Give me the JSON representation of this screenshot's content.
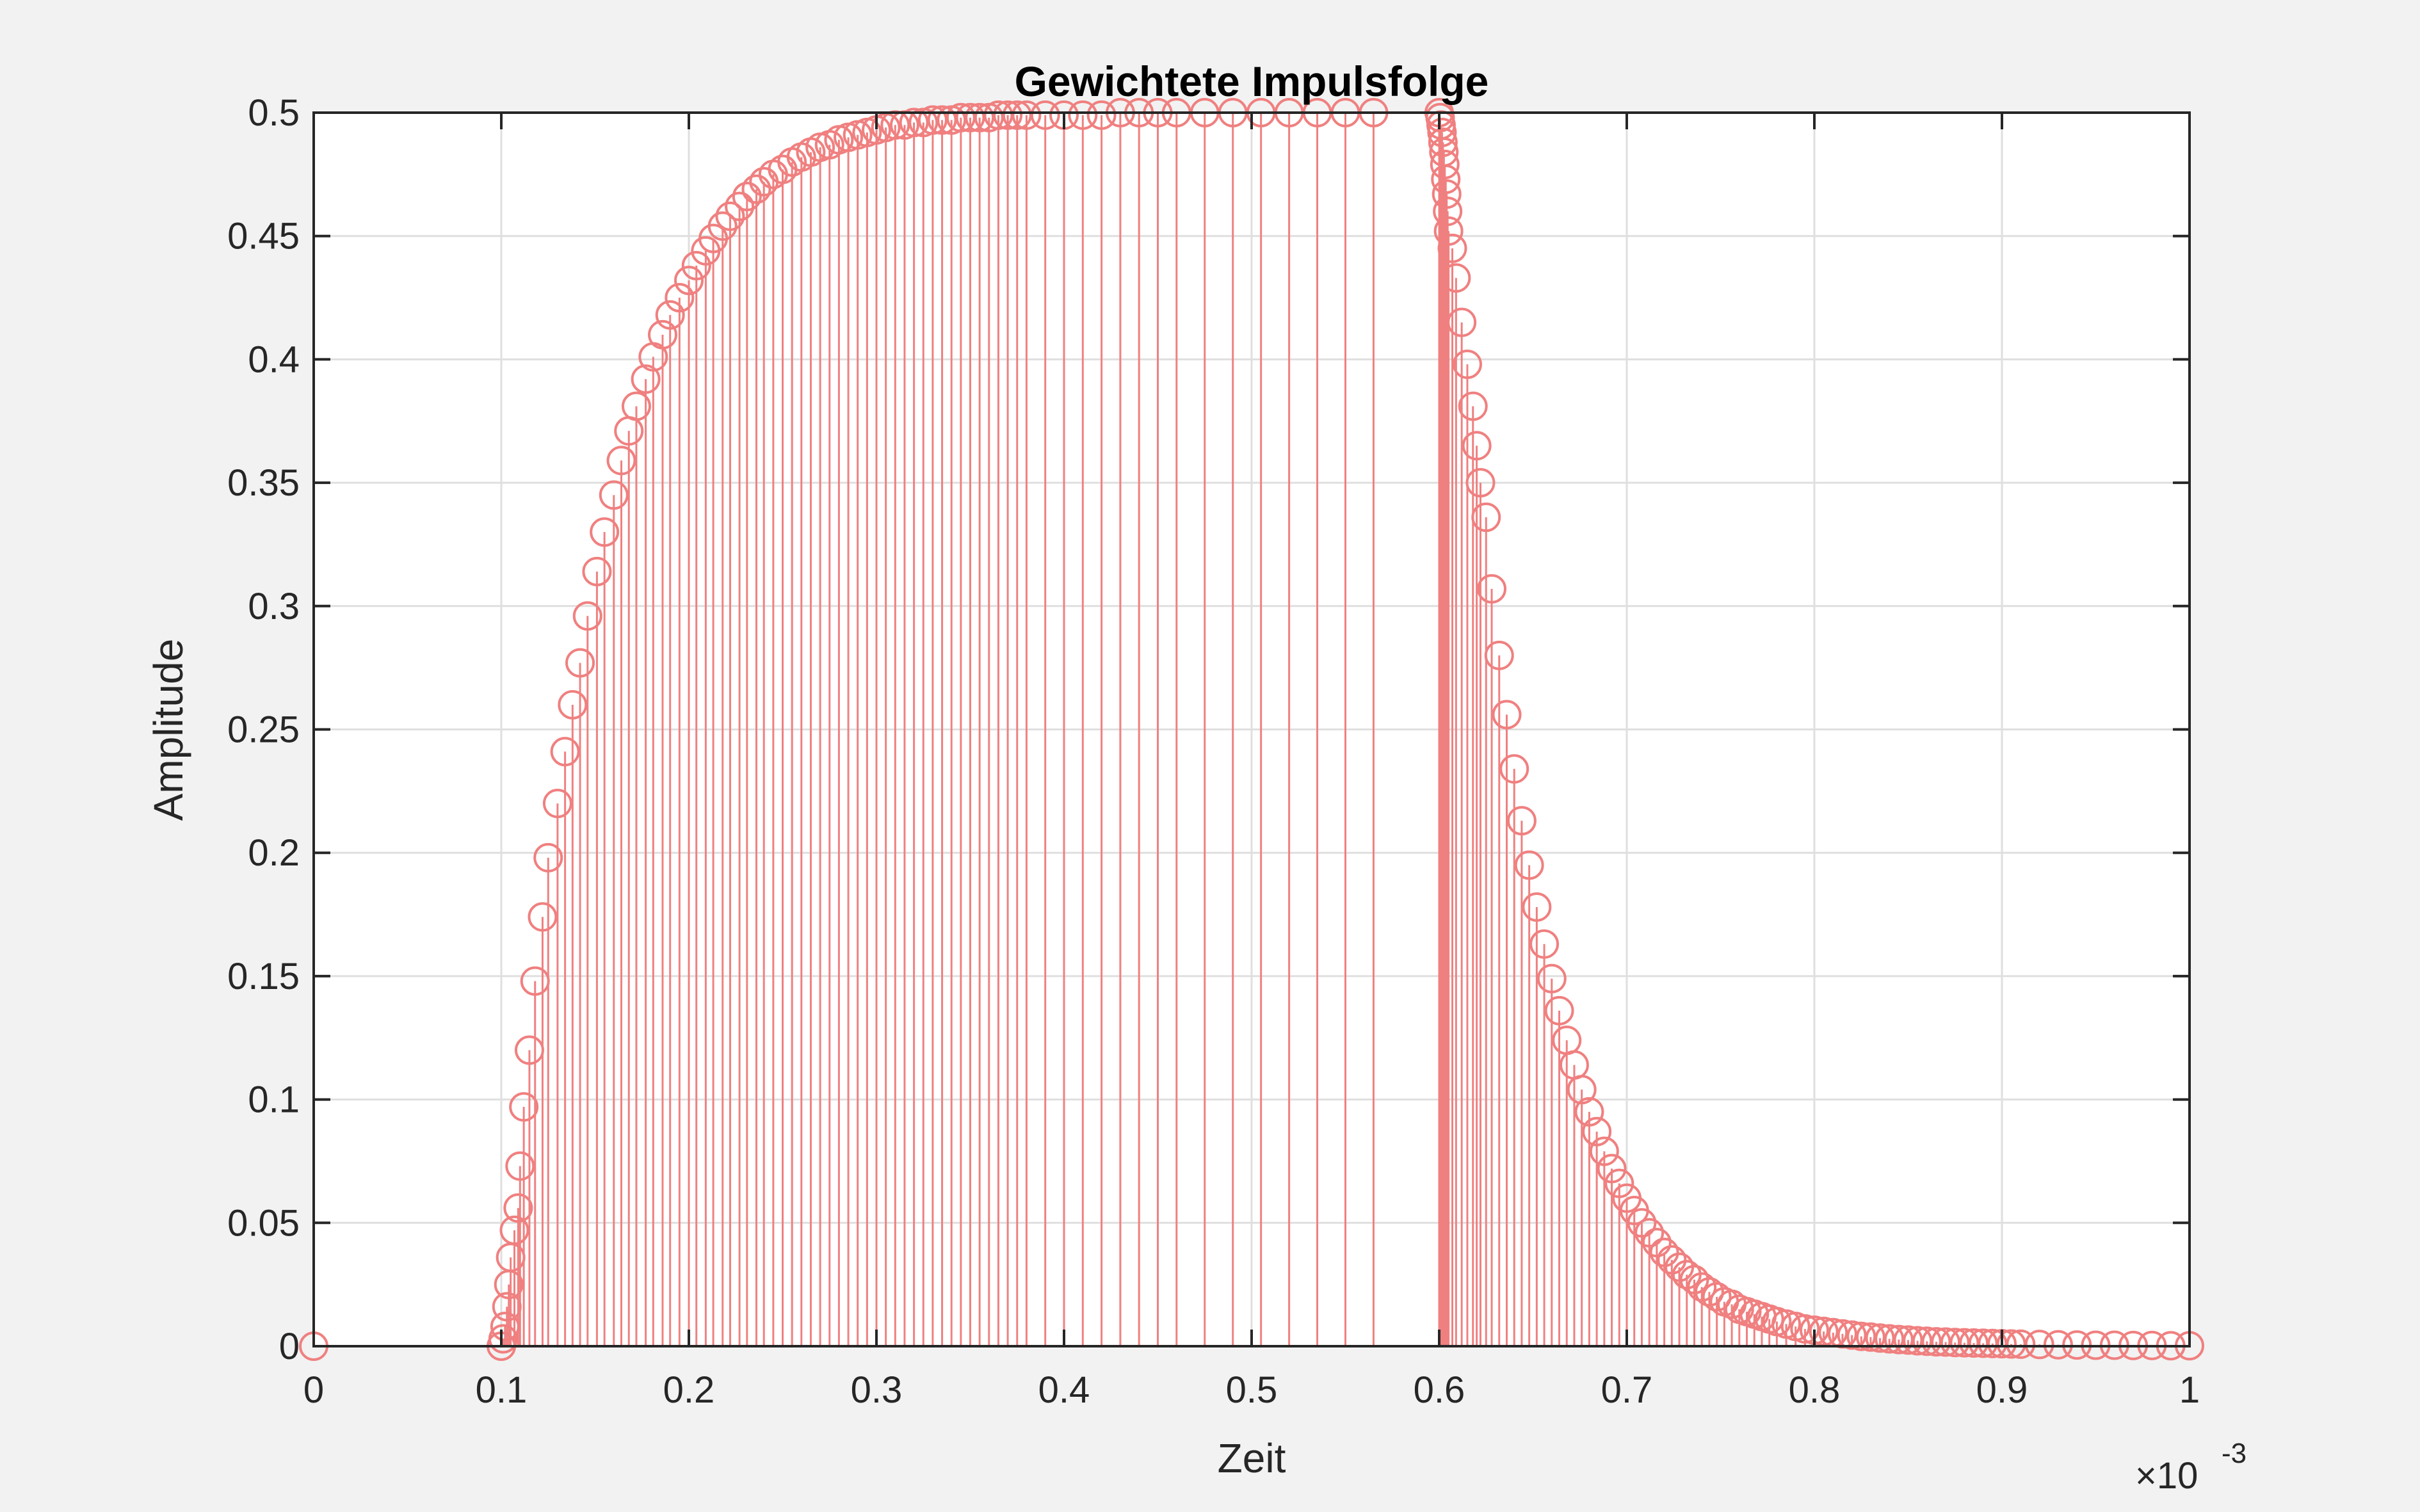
{
  "chart_data": {
    "type": "stem",
    "title": "Gewichtete Impulsfolge",
    "xlabel": "Zeit",
    "ylabel": "Amplitude",
    "x_exponent_base": "×10",
    "x_exponent_power": "-3",
    "xlim": [
      0,
      1
    ],
    "ylim": [
      0,
      0.5
    ],
    "xticks": [
      0,
      0.1,
      0.2,
      0.3,
      0.4,
      0.5,
      0.6,
      0.7,
      0.8,
      0.9,
      1
    ],
    "xtick_labels": [
      "0",
      "0.1",
      "0.2",
      "0.3",
      "0.4",
      "0.5",
      "0.6",
      "0.7",
      "0.8",
      "0.9",
      "1"
    ],
    "yticks": [
      0,
      0.05,
      0.1,
      0.15,
      0.2,
      0.25,
      0.3,
      0.35,
      0.4,
      0.45,
      0.5
    ],
    "ytick_labels": [
      "0",
      "0.05",
      "0.1",
      "0.15",
      "0.2",
      "0.25",
      "0.3",
      "0.35",
      "0.4",
      "0.45",
      "0.5"
    ],
    "grid": true,
    "color": "#f08080",
    "series": [
      {
        "marker": "circle",
        "points": [
          [
            0,
            0
          ],
          [
            0.1,
            0.0
          ],
          [
            0.101,
            0.003
          ],
          [
            0.102,
            0.008
          ],
          [
            0.103,
            0.016
          ],
          [
            0.104,
            0.025
          ],
          [
            0.105,
            0.036
          ],
          [
            0.107,
            0.047
          ],
          [
            0.109,
            0.056
          ],
          [
            0.11,
            0.073
          ],
          [
            0.112,
            0.097
          ],
          [
            0.115,
            0.12
          ],
          [
            0.118,
            0.148
          ],
          [
            0.122,
            0.174
          ],
          [
            0.125,
            0.198
          ],
          [
            0.13,
            0.22
          ],
          [
            0.134,
            0.241
          ],
          [
            0.138,
            0.26
          ],
          [
            0.142,
            0.277
          ],
          [
            0.146,
            0.296
          ],
          [
            0.151,
            0.314
          ],
          [
            0.155,
            0.33
          ],
          [
            0.16,
            0.345
          ],
          [
            0.164,
            0.359
          ],
          [
            0.168,
            0.371
          ],
          [
            0.172,
            0.381
          ],
          [
            0.177,
            0.392
          ],
          [
            0.181,
            0.401
          ],
          [
            0.186,
            0.41
          ],
          [
            0.19,
            0.418
          ],
          [
            0.195,
            0.425
          ],
          [
            0.2,
            0.432
          ],
          [
            0.204,
            0.438
          ],
          [
            0.209,
            0.444
          ],
          [
            0.213,
            0.449
          ],
          [
            0.218,
            0.454
          ],
          [
            0.222,
            0.458
          ],
          [
            0.227,
            0.462
          ],
          [
            0.231,
            0.466
          ],
          [
            0.236,
            0.469
          ],
          [
            0.24,
            0.472
          ],
          [
            0.245,
            0.475
          ],
          [
            0.25,
            0.477
          ],
          [
            0.255,
            0.48
          ],
          [
            0.26,
            0.482
          ],
          [
            0.265,
            0.484
          ],
          [
            0.27,
            0.486
          ],
          [
            0.275,
            0.487
          ],
          [
            0.28,
            0.489
          ],
          [
            0.285,
            0.49
          ],
          [
            0.29,
            0.491
          ],
          [
            0.295,
            0.492
          ],
          [
            0.3,
            0.493
          ],
          [
            0.305,
            0.494
          ],
          [
            0.31,
            0.495
          ],
          [
            0.315,
            0.495
          ],
          [
            0.32,
            0.496
          ],
          [
            0.325,
            0.496
          ],
          [
            0.33,
            0.497
          ],
          [
            0.335,
            0.497
          ],
          [
            0.34,
            0.497
          ],
          [
            0.345,
            0.498
          ],
          [
            0.35,
            0.498
          ],
          [
            0.355,
            0.498
          ],
          [
            0.36,
            0.498
          ],
          [
            0.365,
            0.499
          ],
          [
            0.37,
            0.499
          ],
          [
            0.375,
            0.499
          ],
          [
            0.38,
            0.499
          ],
          [
            0.39,
            0.499
          ],
          [
            0.4,
            0.499
          ],
          [
            0.41,
            0.499
          ],
          [
            0.42,
            0.499
          ],
          [
            0.43,
            0.5
          ],
          [
            0.44,
            0.5
          ],
          [
            0.45,
            0.5
          ],
          [
            0.46,
            0.5
          ],
          [
            0.475,
            0.5
          ],
          [
            0.49,
            0.5
          ],
          [
            0.505,
            0.5
          ],
          [
            0.52,
            0.5
          ],
          [
            0.535,
            0.5
          ],
          [
            0.55,
            0.5
          ],
          [
            0.565,
            0.5
          ],
          [
            0.6,
            0.5
          ],
          [
            0.6005,
            0.498
          ],
          [
            0.601,
            0.495
          ],
          [
            0.6015,
            0.492
          ],
          [
            0.602,
            0.488
          ],
          [
            0.6025,
            0.484
          ],
          [
            0.603,
            0.479
          ],
          [
            0.6035,
            0.473
          ],
          [
            0.604,
            0.467
          ],
          [
            0.6045,
            0.46
          ],
          [
            0.605,
            0.452
          ],
          [
            0.607,
            0.445
          ],
          [
            0.609,
            0.433
          ],
          [
            0.612,
            0.415
          ],
          [
            0.615,
            0.398
          ],
          [
            0.618,
            0.381
          ],
          [
            0.62,
            0.365
          ],
          [
            0.622,
            0.35
          ],
          [
            0.625,
            0.336
          ],
          [
            0.628,
            0.307
          ],
          [
            0.632,
            0.28
          ],
          [
            0.636,
            0.256
          ],
          [
            0.64,
            0.234
          ],
          [
            0.644,
            0.213
          ],
          [
            0.648,
            0.195
          ],
          [
            0.652,
            0.178
          ],
          [
            0.656,
            0.163
          ],
          [
            0.66,
            0.149
          ],
          [
            0.664,
            0.136
          ],
          [
            0.668,
            0.124
          ],
          [
            0.672,
            0.114
          ],
          [
            0.676,
            0.104
          ],
          [
            0.68,
            0.095
          ],
          [
            0.684,
            0.087
          ],
          [
            0.688,
            0.079
          ],
          [
            0.692,
            0.072
          ],
          [
            0.696,
            0.066
          ],
          [
            0.7,
            0.06
          ],
          [
            0.704,
            0.055
          ],
          [
            0.708,
            0.05
          ],
          [
            0.712,
            0.046
          ],
          [
            0.716,
            0.042
          ],
          [
            0.72,
            0.038
          ],
          [
            0.724,
            0.035
          ],
          [
            0.728,
            0.032
          ],
          [
            0.732,
            0.029
          ],
          [
            0.736,
            0.027
          ],
          [
            0.74,
            0.024
          ],
          [
            0.744,
            0.022
          ],
          [
            0.748,
            0.02
          ],
          [
            0.752,
            0.018
          ],
          [
            0.756,
            0.017
          ],
          [
            0.76,
            0.015
          ],
          [
            0.764,
            0.014
          ],
          [
            0.768,
            0.013
          ],
          [
            0.772,
            0.012
          ],
          [
            0.776,
            0.011
          ],
          [
            0.78,
            0.01
          ],
          [
            0.785,
            0.009
          ],
          [
            0.79,
            0.008
          ],
          [
            0.795,
            0.007
          ],
          [
            0.8,
            0.0065
          ],
          [
            0.805,
            0.006
          ],
          [
            0.81,
            0.0055
          ],
          [
            0.815,
            0.005
          ],
          [
            0.82,
            0.0045
          ],
          [
            0.825,
            0.004
          ],
          [
            0.83,
            0.0037
          ],
          [
            0.835,
            0.0033
          ],
          [
            0.84,
            0.003
          ],
          [
            0.845,
            0.0027
          ],
          [
            0.85,
            0.0025
          ],
          [
            0.855,
            0.0022
          ],
          [
            0.86,
            0.002
          ],
          [
            0.865,
            0.0018
          ],
          [
            0.87,
            0.0017
          ],
          [
            0.875,
            0.0015
          ],
          [
            0.88,
            0.0014
          ],
          [
            0.885,
            0.0013
          ],
          [
            0.89,
            0.0012
          ],
          [
            0.895,
            0.0011
          ],
          [
            0.9,
            0.001
          ],
          [
            0.905,
            0.0009
          ],
          [
            0.91,
            0.0008
          ],
          [
            0.92,
            0.0007
          ],
          [
            0.93,
            0.0006
          ],
          [
            0.94,
            0.0005
          ],
          [
            0.95,
            0.0004
          ],
          [
            0.96,
            0.0004
          ],
          [
            0.97,
            0.0003
          ],
          [
            0.98,
            0.0003
          ],
          [
            0.99,
            0.0002
          ],
          [
            1.0,
            0.0002
          ]
        ]
      }
    ]
  }
}
